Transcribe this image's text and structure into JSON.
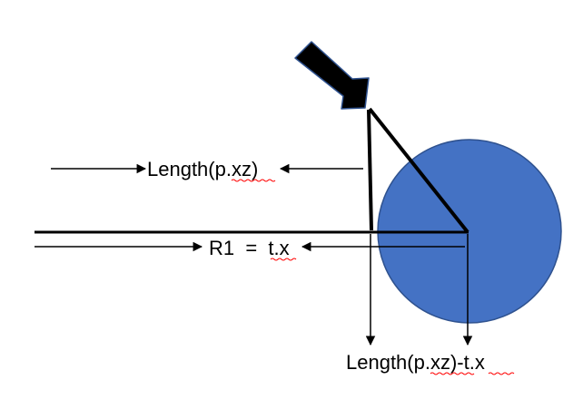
{
  "diagram": {
    "labels": {
      "length_top": "Length(p.xz)",
      "r1": "R1  =  t.x",
      "length_bottom": "Length(p.xz)-t.x"
    },
    "icons": {
      "direction_arrow": "thick-black-arrow-icon"
    },
    "colors": {
      "circle_fill": "#4472C4",
      "circle_stroke": "#2F528F",
      "line": "#000000",
      "spellcheck_underline": "#FF0000"
    }
  }
}
